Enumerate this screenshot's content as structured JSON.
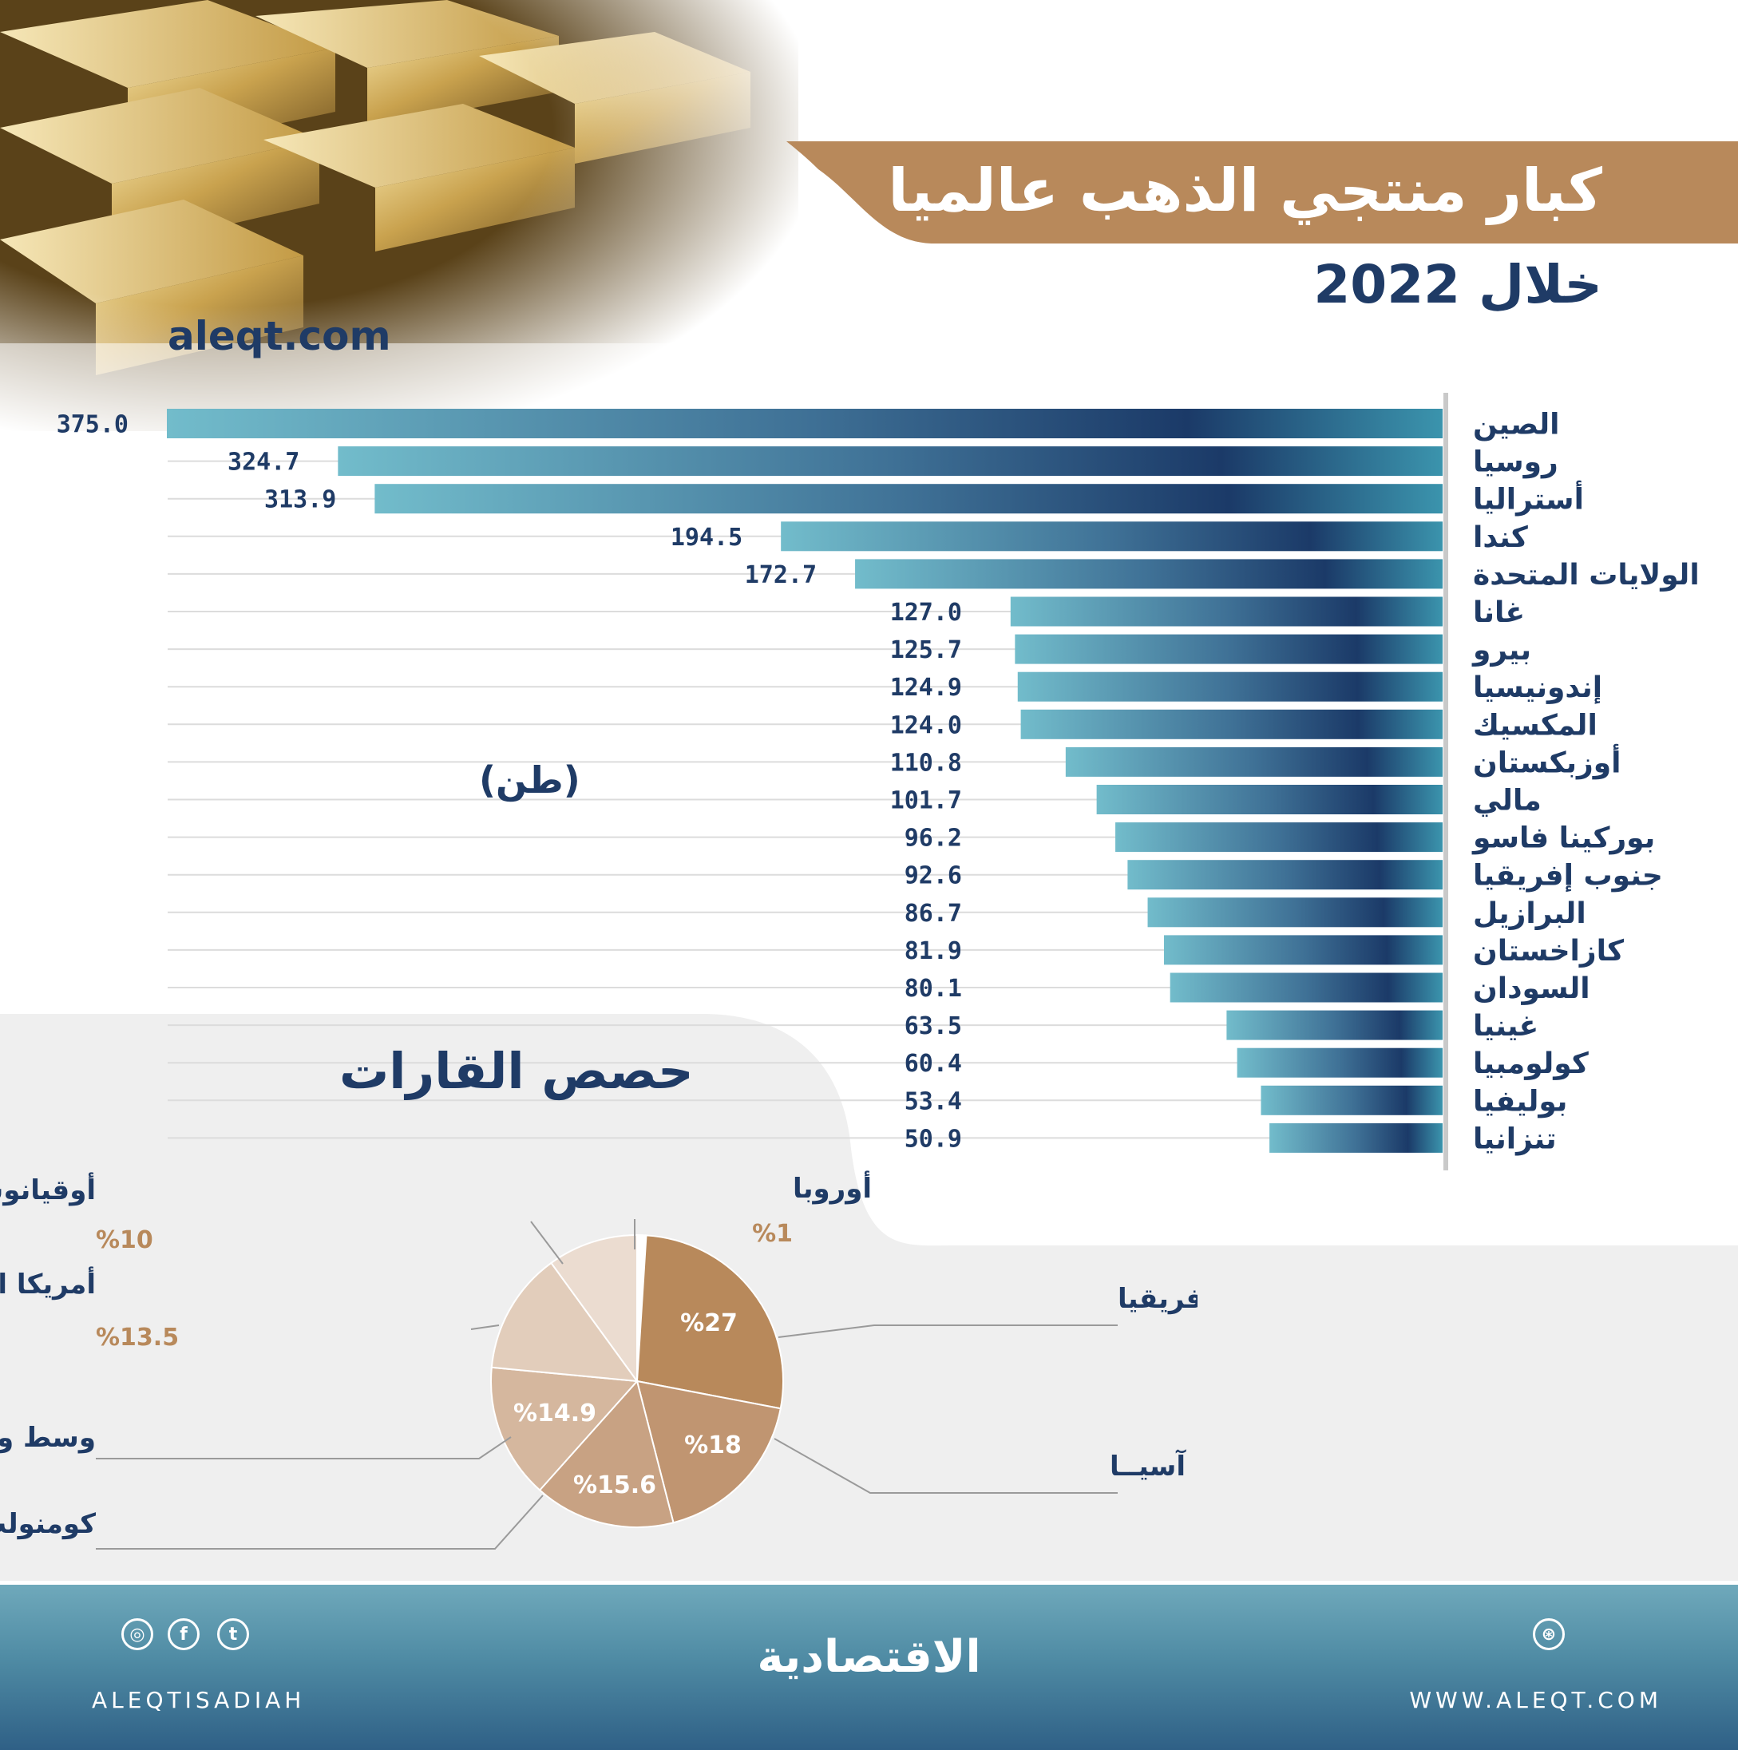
{
  "header": {
    "title": "كبار منتجي الذهب عالميا",
    "subtitle": "خلال 2022",
    "site": "aleqt.com"
  },
  "unit_label": "(طن)",
  "pie_title": "حصص القارات",
  "colors": {
    "navy": "#1f3b66",
    "teal": "#6db7c7",
    "ribbon": "#b8895b",
    "panel": "#efefef"
  },
  "chart_data": [
    {
      "type": "bar",
      "orientation": "horizontal",
      "unit": "(طن)",
      "categories": [
        "الصين",
        "روسيا",
        "أستراليا",
        "كندا",
        "الولايات المتحدة",
        "غانا",
        "بيرو",
        "إندونيسيا",
        "المكسيك",
        "أوزبكستان",
        "مالي",
        "بوركينا فاسو",
        "جنوب إفريقيا",
        "البرازيل",
        "كازاخستان",
        "السودان",
        "غينيا",
        "كولومبيا",
        "بوليفيا",
        "تنزانيا"
      ],
      "values": [
        375.0,
        324.7,
        313.9,
        194.5,
        172.7,
        127.0,
        125.7,
        124.9,
        124.0,
        110.8,
        101.7,
        96.2,
        92.6,
        86.7,
        81.9,
        80.1,
        63.5,
        60.4,
        53.4,
        50.9
      ],
      "value_labels": [
        "375.0",
        "324.7",
        "313.9",
        "194.5",
        "172.7",
        "127.0",
        "125.7",
        "124.9",
        "124.0",
        "110.8",
        "101.7",
        "96.2",
        "92.6",
        "86.7",
        "81.9",
        "80.1",
        "63.5",
        "60.4",
        "53.4",
        "50.9"
      ],
      "title": "كبار منتجي الذهب عالميا",
      "subtitle": "خلال 2022"
    },
    {
      "type": "pie",
      "title": "حصص القارات",
      "slices": [
        {
          "name": "أوروبا",
          "value": 1,
          "label": "%1",
          "color": "#ffffff",
          "label_position": "outside"
        },
        {
          "name": "إفريقيا",
          "value": 27,
          "label": "%27",
          "color": "#b8895b",
          "label_position": "inside"
        },
        {
          "name": "آسيــا",
          "value": 18,
          "label": "%18",
          "color": "#c09571",
          "label_position": "inside"
        },
        {
          "name": "كومنولث",
          "value": 15.6,
          "label": "%15.6",
          "color": "#c8a283",
          "label_position": "inside"
        },
        {
          "name": "وسط وجنوب أمريكا",
          "value": 14.9,
          "label": "%14.9",
          "color": "#d5b79e",
          "label_position": "inside"
        },
        {
          "name": "أمريكا الشمالية",
          "value": 13.5,
          "label": "%13.5",
          "color": "#e2cdbb",
          "label_position": "outside"
        },
        {
          "name": "أوقيانوسيا",
          "value": 10,
          "label": "%10",
          "color": "#ebdcd0",
          "label_position": "outside"
        }
      ]
    }
  ],
  "footer": {
    "logo": "الاقتصادية",
    "handle": "ALEQTISADIAH",
    "website": "WWW.ALEQT.COM",
    "social_icons": [
      "instagram-icon",
      "facebook-icon",
      "twitter-icon"
    ],
    "right_icon": "dribbble-icon"
  }
}
